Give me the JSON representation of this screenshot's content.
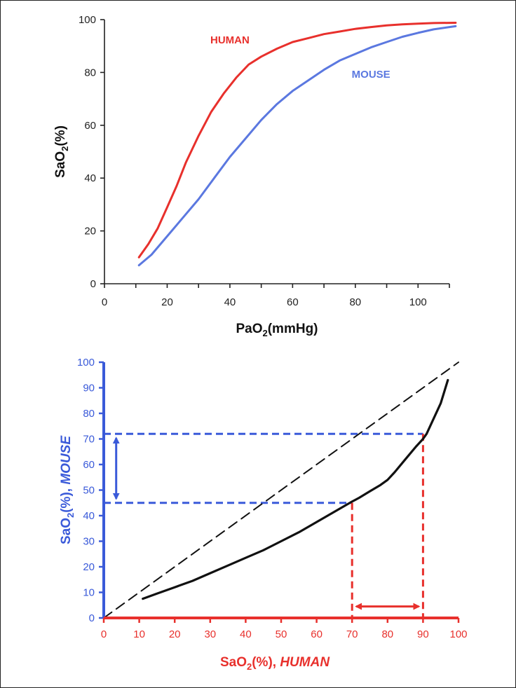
{
  "chart_data": [
    {
      "type": "line",
      "xlabel": {
        "main": "PaO",
        "sub": "2",
        "rest": "(mmHg)"
      },
      "ylabel": {
        "main": "SaO",
        "sub": "2",
        "rest": "(%)"
      },
      "xlim": [
        0,
        110
      ],
      "ylim": [
        0,
        100
      ],
      "xticks": [
        0,
        20,
        40,
        60,
        80,
        100
      ],
      "yticks": [
        0,
        20,
        40,
        60,
        80,
        100
      ],
      "legend": "in-plot labels",
      "grid": false,
      "colors": {
        "axis": "#222222",
        "human": "#e8302c",
        "mouse": "#5b78e0"
      },
      "series": [
        {
          "name": "HUMAN",
          "color": "#e8302c",
          "label_at": [
            40,
            91
          ],
          "points": [
            [
              11,
              10
            ],
            [
              14,
              15
            ],
            [
              17,
              21
            ],
            [
              20,
              29
            ],
            [
              23,
              37
            ],
            [
              26,
              46
            ],
            [
              30,
              56
            ],
            [
              34,
              65
            ],
            [
              38,
              72
            ],
            [
              42,
              78
            ],
            [
              46,
              83
            ],
            [
              50,
              86
            ],
            [
              55,
              89
            ],
            [
              60,
              91.5
            ],
            [
              65,
              93
            ],
            [
              70,
              94.5
            ],
            [
              75,
              95.5
            ],
            [
              80,
              96.5
            ],
            [
              85,
              97.2
            ],
            [
              90,
              97.8
            ],
            [
              95,
              98.2
            ],
            [
              100,
              98.5
            ],
            [
              105,
              98.7
            ],
            [
              112,
              98.8
            ]
          ]
        },
        {
          "name": "MOUSE",
          "color": "#5b78e0",
          "label_at": [
            85,
            78
          ],
          "points": [
            [
              11,
              7
            ],
            [
              15,
              11
            ],
            [
              20,
              18
            ],
            [
              25,
              25
            ],
            [
              30,
              32
            ],
            [
              35,
              40
            ],
            [
              40,
              48
            ],
            [
              45,
              55
            ],
            [
              50,
              62
            ],
            [
              55,
              68
            ],
            [
              60,
              73
            ],
            [
              65,
              77
            ],
            [
              70,
              81
            ],
            [
              75,
              84.5
            ],
            [
              80,
              87
            ],
            [
              85,
              89.5
            ],
            [
              90,
              91.5
            ],
            [
              95,
              93.5
            ],
            [
              100,
              95
            ],
            [
              105,
              96.3
            ],
            [
              112,
              97.5
            ]
          ]
        }
      ]
    },
    {
      "type": "line",
      "xlabel": {
        "main": "SaO",
        "sub": "2",
        "rest": "(%), ",
        "italic": "HUMAN"
      },
      "ylabel": {
        "main": "SaO",
        "sub": "2",
        "rest": "(%), ",
        "italic": "MOUSE"
      },
      "xlim": [
        0,
        100
      ],
      "ylim": [
        0,
        100
      ],
      "xticks": [
        0,
        10,
        20,
        30,
        40,
        50,
        60,
        70,
        80,
        90,
        100
      ],
      "yticks": [
        0,
        10,
        20,
        30,
        40,
        50,
        60,
        70,
        80,
        90,
        100
      ],
      "grid": false,
      "colors": {
        "x_axis": "#e8302c",
        "y_axis": "#3a5ad9",
        "curve": "#111111",
        "identity": "#111111"
      },
      "series": [
        {
          "name": "",
          "style": "solid",
          "color": "#111111",
          "points": [
            [
              11,
              7.5
            ],
            [
              15,
              9.5
            ],
            [
              20,
              12
            ],
            [
              25,
              14.5
            ],
            [
              30,
              17.5
            ],
            [
              35,
              20.5
            ],
            [
              40,
              23.5
            ],
            [
              45,
              26.5
            ],
            [
              50,
              30
            ],
            [
              55,
              33.5
            ],
            [
              60,
              37.5
            ],
            [
              65,
              41.5
            ],
            [
              70,
              45.5
            ],
            [
              72,
              47
            ],
            [
              75,
              49.5
            ],
            [
              78,
              52
            ],
            [
              80,
              54
            ],
            [
              82,
              57
            ],
            [
              85,
              62
            ],
            [
              88,
              67
            ],
            [
              90,
              70
            ],
            [
              91,
              72
            ],
            [
              93,
              78
            ],
            [
              95,
              84
            ],
            [
              97,
              93
            ]
          ]
        },
        {
          "name": "",
          "style": "dashed",
          "color": "#111111",
          "points": [
            [
              0,
              0
            ],
            [
              100,
              100
            ]
          ]
        }
      ],
      "annotations": {
        "mouse_low": 45,
        "mouse_high": 72,
        "human_low": 70,
        "human_high": 90,
        "mouse_arrow_x": 3.5,
        "human_arrow_y": 4.5
      }
    }
  ]
}
